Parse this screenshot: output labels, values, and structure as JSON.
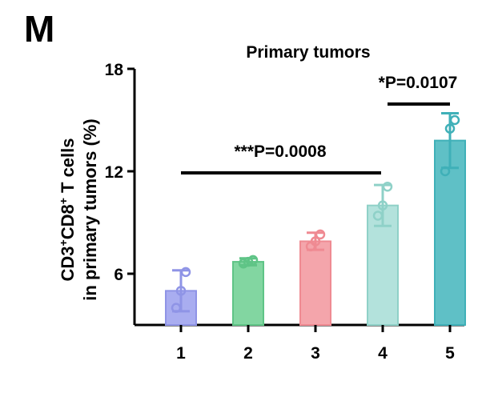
{
  "panel_label": "M",
  "chart_data": {
    "type": "bar",
    "title": "Primary tumors",
    "ylabel_line1_parts": [
      "CD3",
      "+",
      "CD8",
      "+",
      " T cells"
    ],
    "ylabel_line2": "in primary tumors (%)",
    "xlabel": "",
    "categories": [
      "1",
      "2",
      "3",
      "4",
      "5"
    ],
    "values": [
      5.0,
      6.7,
      7.9,
      10.0,
      13.8
    ],
    "errors": [
      1.2,
      0.2,
      0.5,
      1.2,
      1.6
    ],
    "points": [
      [
        4.0,
        5.0,
        6.1
      ],
      [
        6.6,
        6.7,
        6.8
      ],
      [
        7.6,
        7.9,
        8.3
      ],
      [
        9.4,
        10.0,
        11.1
      ],
      [
        12.0,
        14.5,
        15.0
      ]
    ],
    "colors": [
      "#a9adf0",
      "#82d6a1",
      "#f4a5ab",
      "#b3e2dc",
      "#5fc0c6"
    ],
    "edge_colors": [
      "#8f94e6",
      "#5fc486",
      "#ef8a92",
      "#8fd1c8",
      "#3fb0b8"
    ],
    "ylim": [
      3.0,
      18.0
    ],
    "yticks": [
      6,
      12,
      18
    ],
    "annotations": [
      {
        "text": "***P=0.0008",
        "from": "1",
        "to": "4"
      },
      {
        "text": "*P=0.0107",
        "from": "4",
        "to": "5"
      }
    ]
  }
}
